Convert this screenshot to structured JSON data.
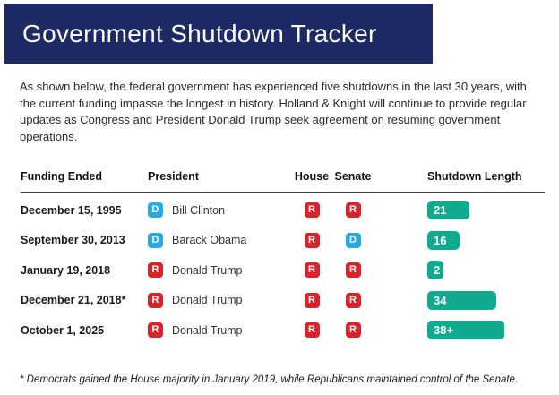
{
  "header": {
    "title": "Government Shutdown Tracker"
  },
  "intro": {
    "text": "As shown below, the federal government has experienced five shutdowns in the last 30 years, with the current funding impasse the longest in history. Holland & Knight will continue to provide regular updates as Congress and President Donald Trump seek agreement on resuming government operations."
  },
  "table": {
    "columns": [
      "Funding Ended",
      "President",
      "House",
      "Senate",
      "Shutdown Length"
    ],
    "rows": [
      {
        "funding_ended": "December 15, 1995",
        "president": {
          "party": "D",
          "name": "Bill Clinton"
        },
        "house": "R",
        "senate": "R",
        "length": {
          "days": 21,
          "label": "21"
        }
      },
      {
        "funding_ended": "September 30, 2013",
        "president": {
          "party": "D",
          "name": "Barack Obama"
        },
        "house": "R",
        "senate": "D",
        "length": {
          "days": 16,
          "label": "16"
        }
      },
      {
        "funding_ended": "January 19, 2018",
        "president": {
          "party": "R",
          "name": "Donald Trump"
        },
        "house": "R",
        "senate": "R",
        "length": {
          "days": 2,
          "label": "2"
        }
      },
      {
        "funding_ended": "December 21, 2018*",
        "president": {
          "party": "R",
          "name": "Donald Trump"
        },
        "house": "R",
        "senate": "R",
        "length": {
          "days": 34,
          "label": "34"
        }
      },
      {
        "funding_ended": "October 1, 2025",
        "president": {
          "party": "R",
          "name": "Donald Trump"
        },
        "house": "R",
        "senate": "R",
        "length": {
          "days": 38,
          "label": "38+"
        }
      }
    ]
  },
  "footnote": {
    "text": "* Democrats gained the House majority in January 2019, while Republicans maintained control of the Senate."
  },
  "colors": {
    "banner": "#1e2a66",
    "democrat": "#29a9e1",
    "republican": "#d8232a",
    "length_bar": "#10ab8e"
  }
}
